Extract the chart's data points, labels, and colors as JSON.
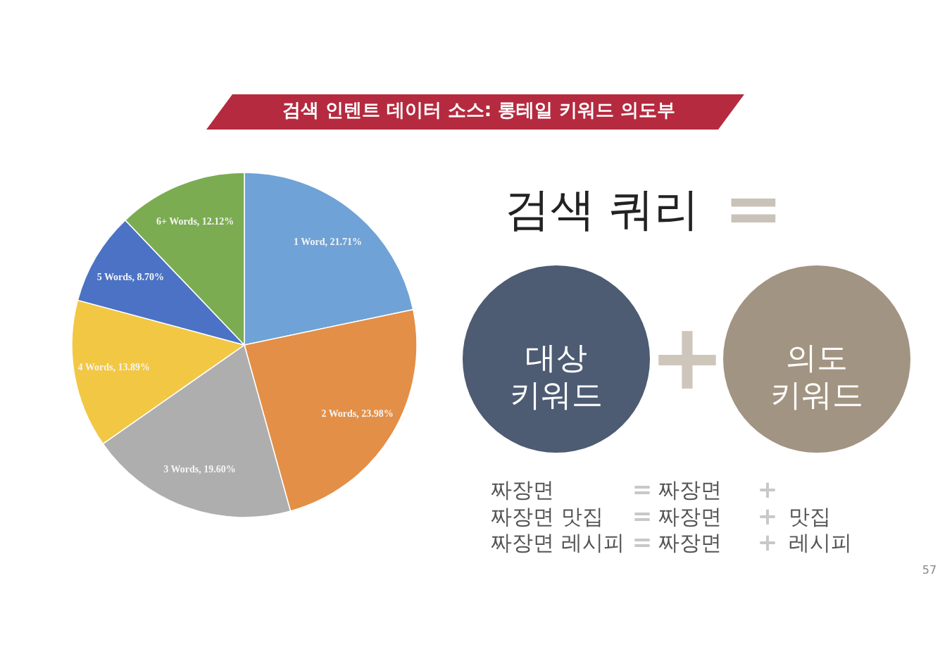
{
  "chart_data": [
    {
      "type": "pie",
      "title": "검색 인텐트 데이터 소스: 롱테일 키워드 의도부",
      "categories": [
        "1 Word",
        "2 Words",
        "3 Words",
        "4 Words",
        "5 Words",
        "6+ Words"
      ],
      "values": [
        21.71,
        23.98,
        19.6,
        13.89,
        8.7,
        12.12
      ],
      "colors": [
        "#6fa2d6",
        "#e38f47",
        "#aeaeae",
        "#f2c744",
        "#4b72c4",
        "#7bac52"
      ],
      "value_labels": [
        "21.71%",
        "23.98%",
        "19.60%",
        "13.89%",
        "8.70%",
        "12.12%"
      ]
    },
    {
      "type": "other",
      "title": "검색 쿼리",
      "annotations": [
        "=",
        "대상\n키워드",
        "+",
        "의도\n키워드",
        "짜장면",
        "=",
        "짜장면",
        "+",
        "짜장면 맛집",
        "=",
        "짜장면",
        "+",
        "맛집",
        "짜장면 레시피",
        "=",
        "짜장면",
        "+",
        "레시피",
        "57"
      ]
    }
  ]
}
